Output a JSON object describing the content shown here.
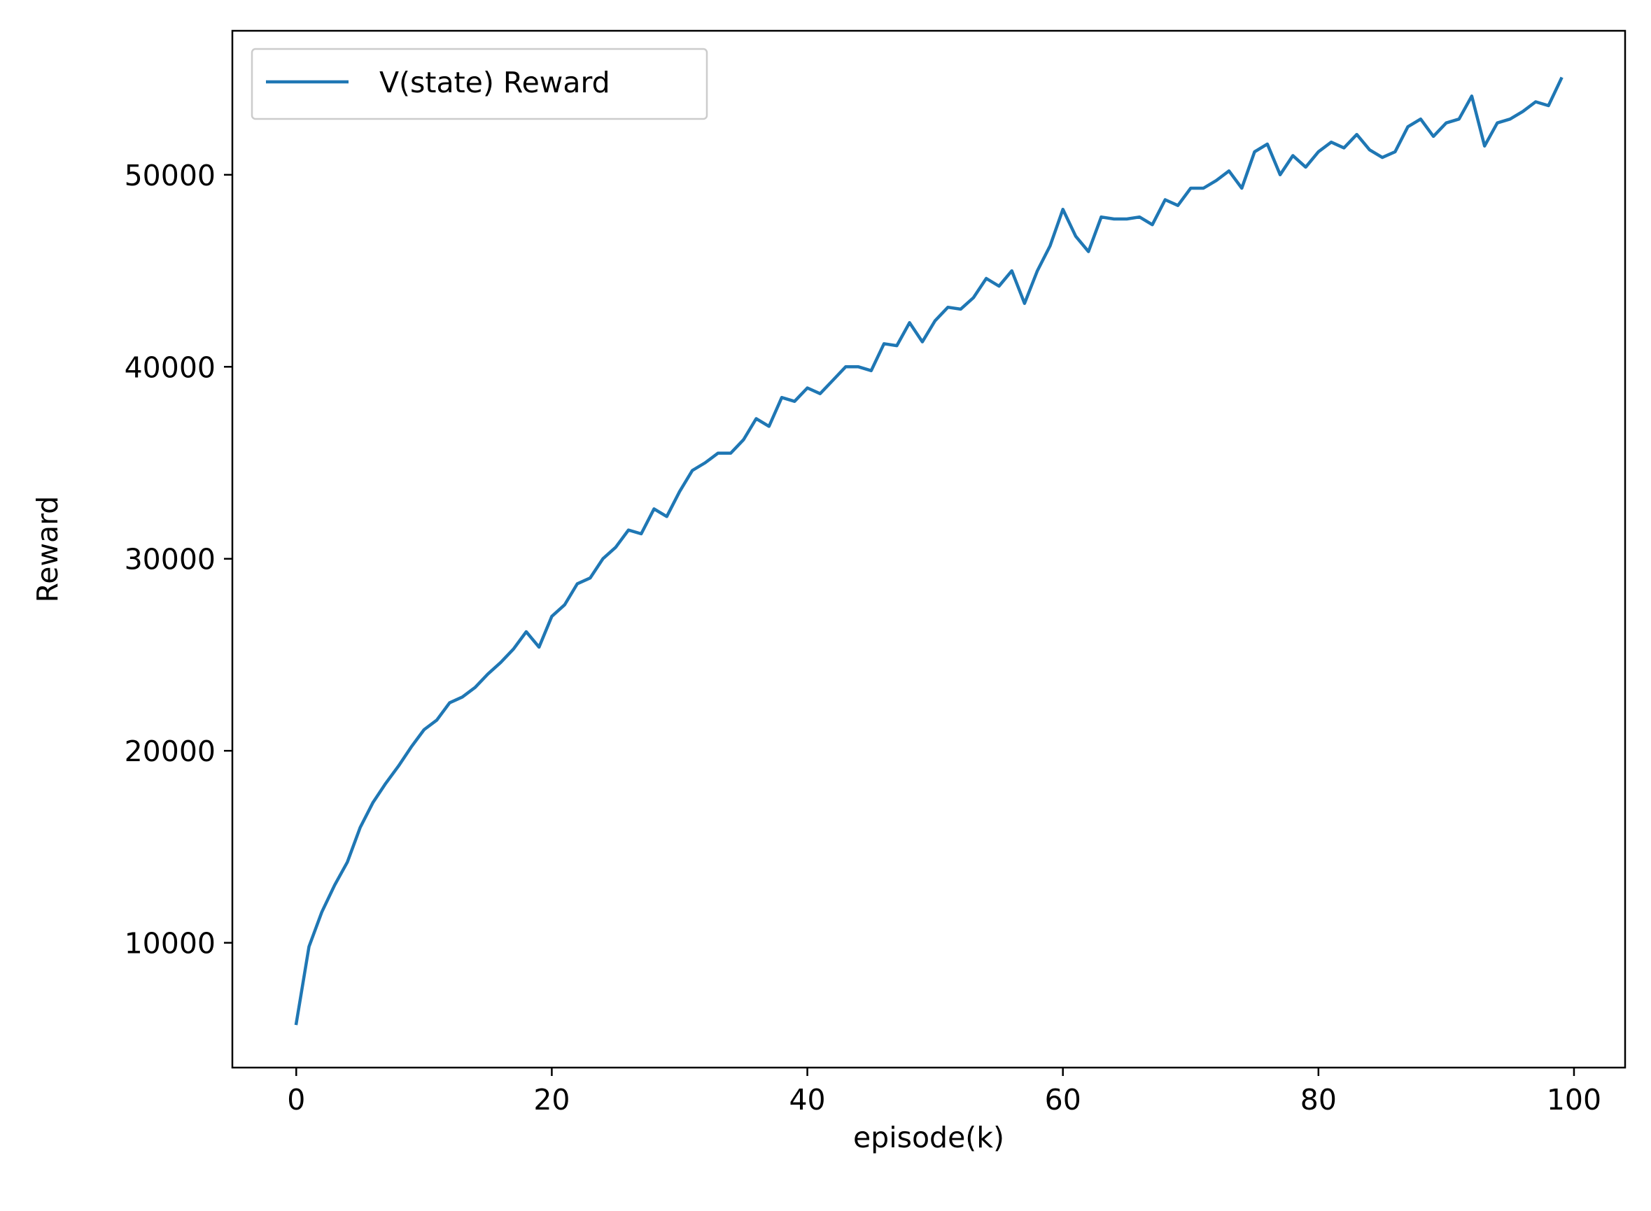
{
  "chart_data": {
    "type": "line",
    "title": "",
    "xlabel": "episode(k)",
    "ylabel": "Reward",
    "xlim": [
      -5,
      104
    ],
    "ylim": [
      3500,
      57500
    ],
    "xticks": [
      0,
      20,
      40,
      60,
      80,
      100
    ],
    "yticks": [
      10000,
      20000,
      30000,
      40000,
      50000
    ],
    "grid": false,
    "legend_position": "upper-left",
    "series": [
      {
        "name": "V(state) Reward",
        "color": "#1f77b4",
        "x": [
          0,
          1,
          2,
          3,
          4,
          5,
          6,
          7,
          8,
          9,
          10,
          11,
          12,
          13,
          14,
          15,
          16,
          17,
          18,
          19,
          20,
          21,
          22,
          23,
          24,
          25,
          26,
          27,
          28,
          29,
          30,
          31,
          32,
          33,
          34,
          35,
          36,
          37,
          38,
          39,
          40,
          41,
          42,
          43,
          44,
          45,
          46,
          47,
          48,
          49,
          50,
          51,
          52,
          53,
          54,
          55,
          56,
          57,
          58,
          59,
          60,
          61,
          62,
          63,
          64,
          65,
          66,
          67,
          68,
          69,
          70,
          71,
          72,
          73,
          74,
          75,
          76,
          77,
          78,
          79,
          80,
          81,
          82,
          83,
          84,
          85,
          86,
          87,
          88,
          89,
          90,
          91,
          92,
          93,
          94,
          95,
          96,
          97,
          98,
          99
        ],
        "y": [
          5800,
          9800,
          11600,
          13000,
          14200,
          16000,
          17300,
          18300,
          19200,
          20200,
          21100,
          21600,
          22500,
          22800,
          23300,
          24000,
          24600,
          25300,
          26200,
          25400,
          27000,
          27600,
          28700,
          29000,
          30000,
          30600,
          31500,
          31300,
          32600,
          32200,
          33500,
          34600,
          35000,
          35500,
          35500,
          36200,
          37300,
          36900,
          38400,
          38200,
          38900,
          38600,
          39300,
          40000,
          40000,
          39800,
          41200,
          41100,
          42300,
          41300,
          42400,
          43100,
          43000,
          43600,
          44600,
          44200,
          45000,
          43300,
          45000,
          46300,
          48200,
          46800,
          46000,
          47800,
          47700,
          47700,
          47800,
          47400,
          48700,
          48400,
          49300,
          49300,
          49700,
          50200,
          49300,
          51200,
          51600,
          50000,
          51000,
          50400,
          51200,
          51700,
          51400,
          52100,
          51300,
          50900,
          51200,
          52500,
          52900,
          52000,
          52700,
          52900,
          54100,
          51500,
          52700,
          52900,
          53300,
          53800,
          53600,
          55000
        ]
      }
    ]
  }
}
